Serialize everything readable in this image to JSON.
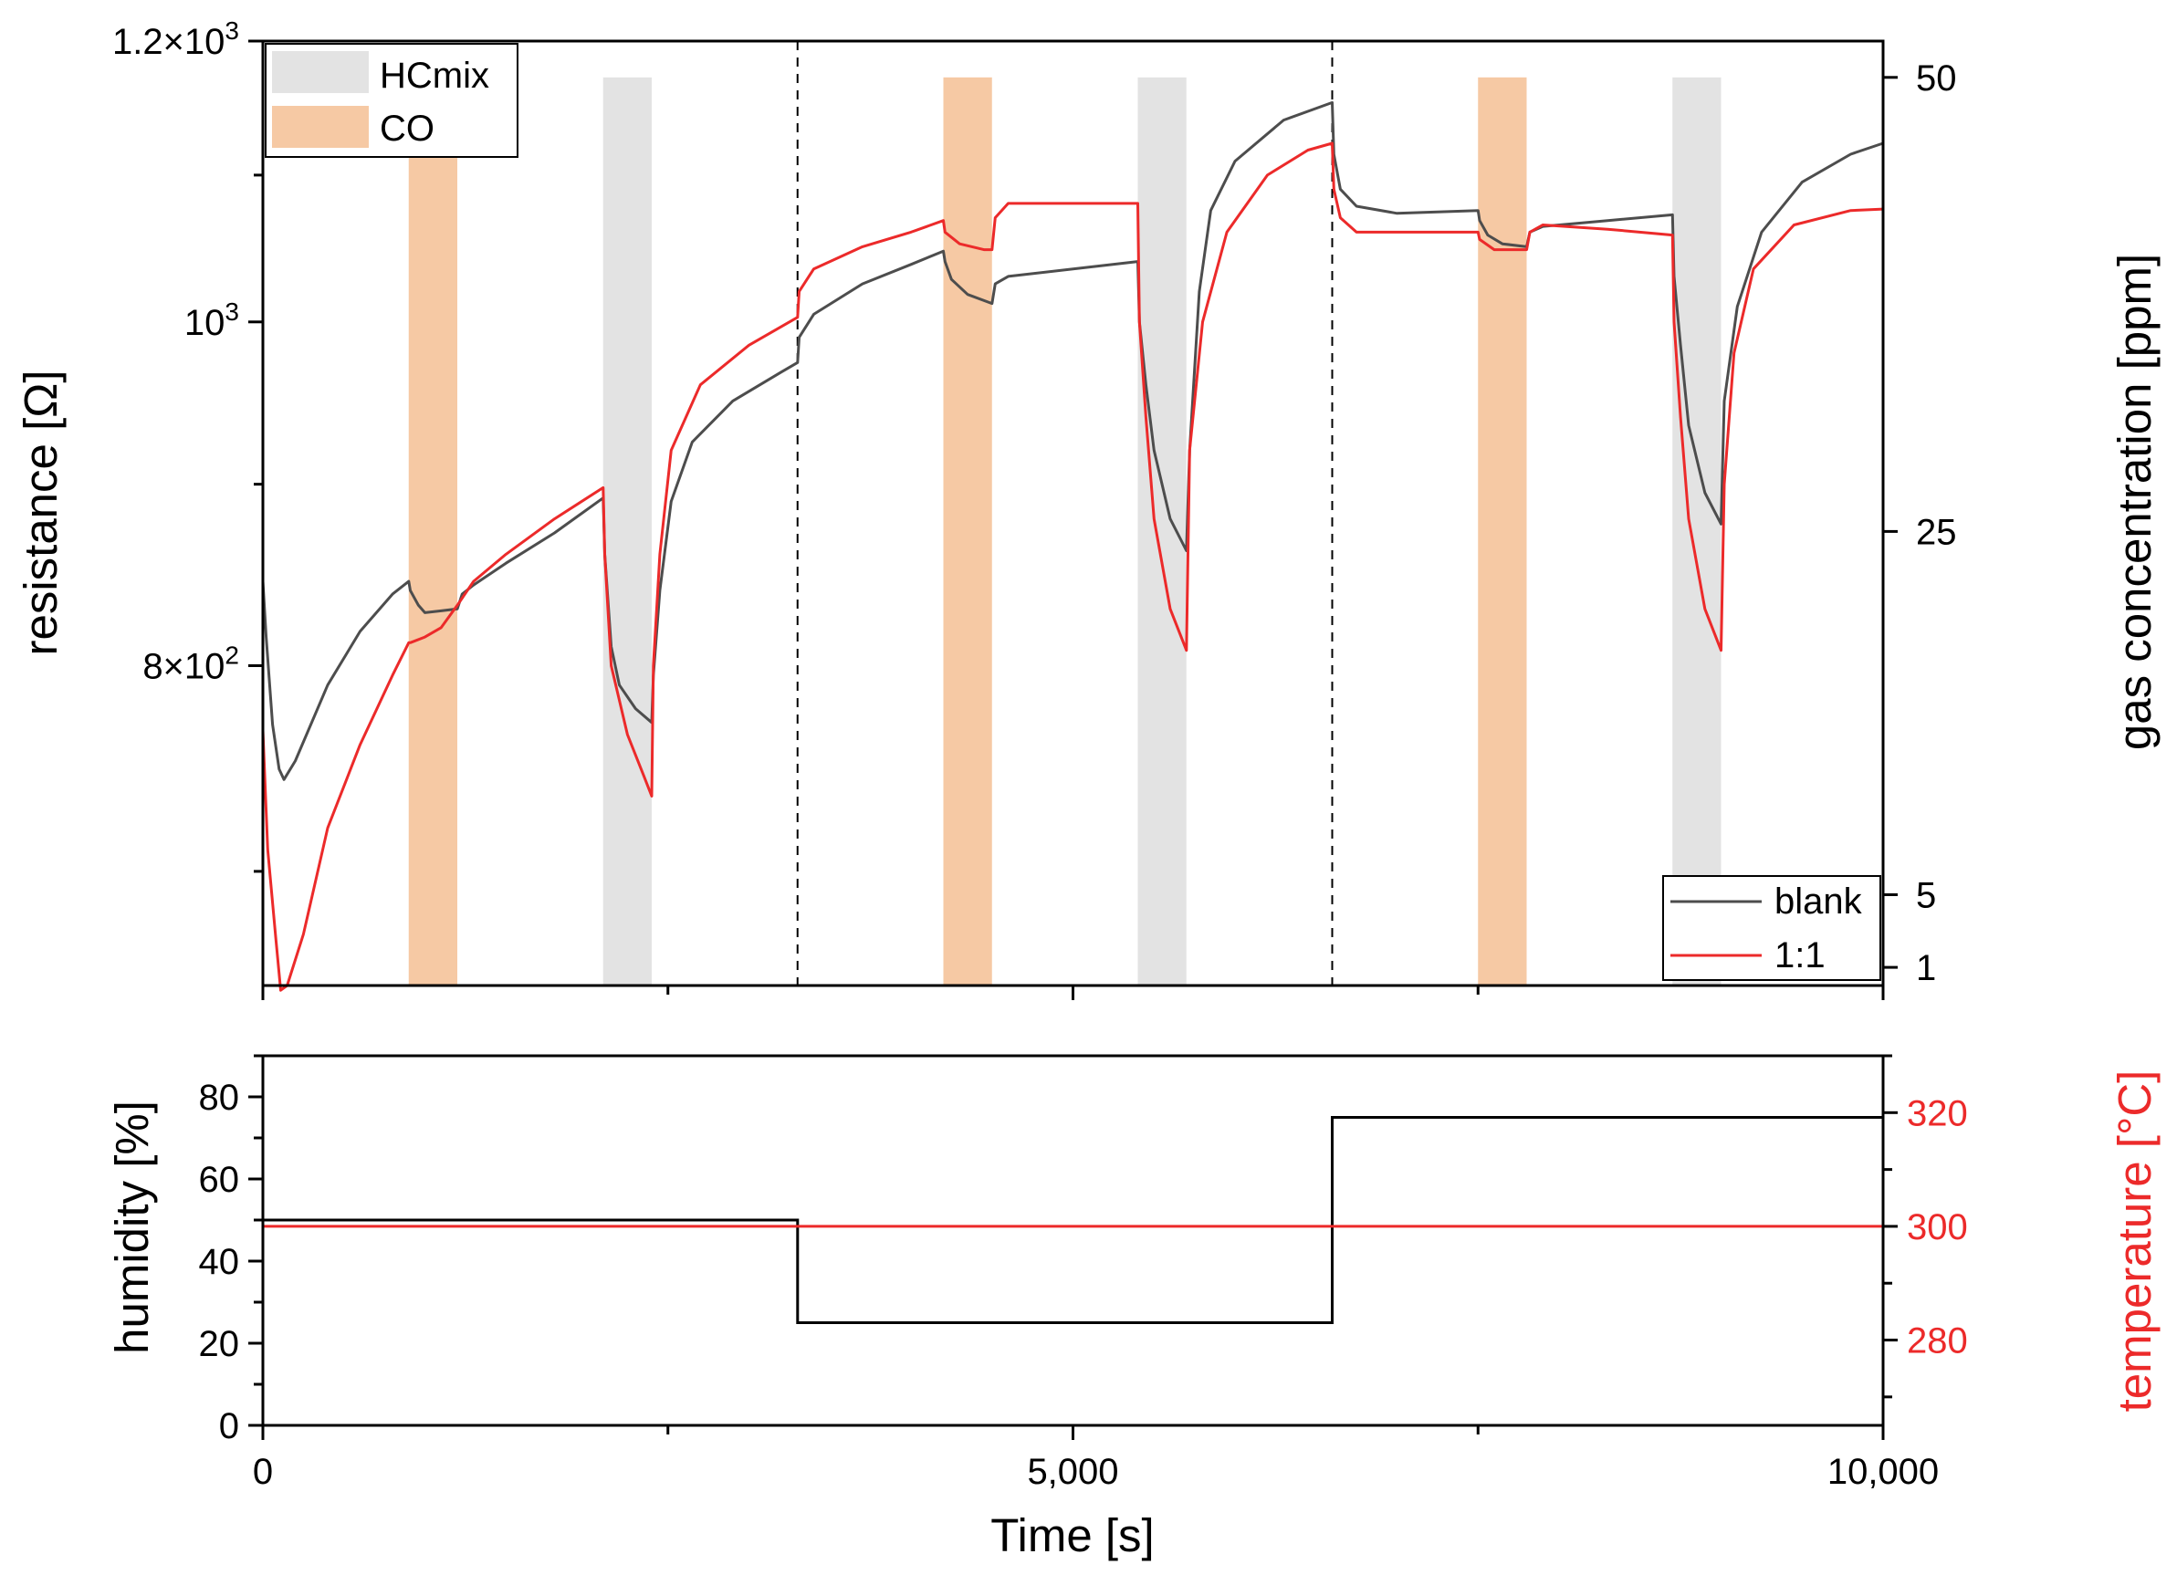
{
  "chart_data": [
    {
      "type": "line",
      "xlabel": "Time [s]",
      "ylabel": "resistance [Ω]",
      "y2label": "gas concentration [ppm]",
      "xlim": [
        0,
        10000
      ],
      "ylim": [
        650,
        1200
      ],
      "y2lim": [
        0,
        52
      ],
      "x_ticks": [
        0,
        5000,
        10000
      ],
      "x_tick_labels": [
        "0",
        "5,000",
        "10,000"
      ],
      "y_ticks": [
        {
          "value": 800,
          "label_base": "8×10",
          "label_exp": "2"
        },
        {
          "value": 1000,
          "label_base": "10",
          "label_exp": "3"
        },
        {
          "value": 1200,
          "label_base": "1.2×10",
          "label_exp": "3"
        }
      ],
      "y2_ticks": [
        1,
        5,
        25,
        50
      ],
      "y2_tick_labels": [
        "1",
        "5",
        "25",
        "50"
      ],
      "phase_boundaries_s": [
        3300,
        6600
      ],
      "gas_pulses": [
        {
          "gas": "CO",
          "start_s": 900,
          "end_s": 1200,
          "concentration_ppm": 50
        },
        {
          "gas": "HCmix",
          "start_s": 2100,
          "end_s": 2400,
          "concentration_ppm": 50
        },
        {
          "gas": "CO",
          "start_s": 4200,
          "end_s": 4500,
          "concentration_ppm": 50
        },
        {
          "gas": "HCmix",
          "start_s": 5400,
          "end_s": 5700,
          "concentration_ppm": 50
        },
        {
          "gas": "CO",
          "start_s": 7500,
          "end_s": 7800,
          "concentration_ppm": 50
        },
        {
          "gas": "HCmix",
          "start_s": 8700,
          "end_s": 9000,
          "concentration_ppm": 50
        }
      ],
      "legend_gas": [
        {
          "label": "HCmix",
          "color": "#e3e3e3"
        },
        {
          "label": "CO",
          "color": "#f6c9a4"
        }
      ],
      "legend_gas_position": "top-left",
      "legend_lines_position": "bottom-right",
      "series": [
        {
          "name": "blank",
          "color": "#4d4d4d",
          "points": [
            [
              0,
              845
            ],
            [
              20,
              815
            ],
            [
              60,
              770
            ],
            [
              100,
              748
            ],
            [
              130,
              743
            ],
            [
              200,
              752
            ],
            [
              400,
              790
            ],
            [
              600,
              818
            ],
            [
              800,
              838
            ],
            [
              900,
              845
            ],
            [
              910,
              840
            ],
            [
              960,
              832
            ],
            [
              1000,
              828
            ],
            [
              1100,
              829
            ],
            [
              1200,
              830
            ],
            [
              1230,
              838
            ],
            [
              1300,
              843
            ],
            [
              1500,
              855
            ],
            [
              1800,
              872
            ],
            [
              2100,
              892
            ],
            [
              2110,
              860
            ],
            [
              2150,
              810
            ],
            [
              2200,
              790
            ],
            [
              2300,
              778
            ],
            [
              2400,
              771
            ],
            [
              2410,
              795
            ],
            [
              2450,
              840
            ],
            [
              2520,
              890
            ],
            [
              2650,
              925
            ],
            [
              2900,
              950
            ],
            [
              3200,
              968
            ],
            [
              3300,
              974
            ],
            [
              3310,
              990
            ],
            [
              3400,
              1005
            ],
            [
              3700,
              1025
            ],
            [
              4000,
              1038
            ],
            [
              4200,
              1047
            ],
            [
              4210,
              1040
            ],
            [
              4250,
              1028
            ],
            [
              4350,
              1018
            ],
            [
              4500,
              1012
            ],
            [
              4520,
              1025
            ],
            [
              4600,
              1030
            ],
            [
              5000,
              1035
            ],
            [
              5400,
              1040
            ],
            [
              5410,
              1000
            ],
            [
              5450,
              960
            ],
            [
              5500,
              920
            ],
            [
              5600,
              880
            ],
            [
              5700,
              862
            ],
            [
              5720,
              920
            ],
            [
              5780,
              1020
            ],
            [
              5850,
              1075
            ],
            [
              6000,
              1110
            ],
            [
              6300,
              1140
            ],
            [
              6600,
              1153
            ],
            [
              6610,
              1115
            ],
            [
              6650,
              1090
            ],
            [
              6750,
              1078
            ],
            [
              7000,
              1073
            ],
            [
              7500,
              1075
            ],
            [
              7510,
              1068
            ],
            [
              7560,
              1058
            ],
            [
              7650,
              1052
            ],
            [
              7800,
              1050
            ],
            [
              7820,
              1060
            ],
            [
              7900,
              1064
            ],
            [
              8300,
              1068
            ],
            [
              8700,
              1072
            ],
            [
              8710,
              1030
            ],
            [
              8750,
              985
            ],
            [
              8800,
              935
            ],
            [
              8900,
              895
            ],
            [
              9000,
              877
            ],
            [
              9020,
              950
            ],
            [
              9100,
              1010
            ],
            [
              9250,
              1060
            ],
            [
              9500,
              1095
            ],
            [
              9800,
              1115
            ],
            [
              10000,
              1123
            ]
          ]
        },
        {
          "name": "1:1",
          "color": "#ec2a2a",
          "points": [
            [
              0,
              767
            ],
            [
              30,
              710
            ],
            [
              80,
              670
            ],
            [
              110,
              648
            ],
            [
              150,
              650
            ],
            [
              250,
              672
            ],
            [
              400,
              720
            ],
            [
              600,
              760
            ],
            [
              800,
              795
            ],
            [
              900,
              812
            ],
            [
              910,
              812
            ],
            [
              1000,
              815
            ],
            [
              1100,
              820
            ],
            [
              1200,
              832
            ],
            [
              1300,
              845
            ],
            [
              1500,
              860
            ],
            [
              1800,
              880
            ],
            [
              2100,
              898
            ],
            [
              2110,
              860
            ],
            [
              2150,
              800
            ],
            [
              2250,
              765
            ],
            [
              2350,
              745
            ],
            [
              2400,
              735
            ],
            [
              2410,
              800
            ],
            [
              2450,
              860
            ],
            [
              2520,
              920
            ],
            [
              2700,
              960
            ],
            [
              3000,
              985
            ],
            [
              3300,
              1003
            ],
            [
              3310,
              1020
            ],
            [
              3400,
              1035
            ],
            [
              3700,
              1050
            ],
            [
              4000,
              1060
            ],
            [
              4200,
              1068
            ],
            [
              4210,
              1060
            ],
            [
              4300,
              1052
            ],
            [
              4450,
              1048
            ],
            [
              4500,
              1048
            ],
            [
              4520,
              1070
            ],
            [
              4600,
              1080
            ],
            [
              5400,
              1080
            ],
            [
              5410,
              1000
            ],
            [
              5450,
              940
            ],
            [
              5500,
              880
            ],
            [
              5600,
              830
            ],
            [
              5700,
              808
            ],
            [
              5720,
              920
            ],
            [
              5800,
              1000
            ],
            [
              5950,
              1060
            ],
            [
              6200,
              1100
            ],
            [
              6450,
              1118
            ],
            [
              6600,
              1123
            ],
            [
              6610,
              1090
            ],
            [
              6650,
              1070
            ],
            [
              6750,
              1060
            ],
            [
              7500,
              1060
            ],
            [
              7510,
              1055
            ],
            [
              7600,
              1048
            ],
            [
              7800,
              1048
            ],
            [
              7820,
              1060
            ],
            [
              7900,
              1065
            ],
            [
              8300,
              1062
            ],
            [
              8700,
              1058
            ],
            [
              8710,
              1000
            ],
            [
              8750,
              940
            ],
            [
              8800,
              880
            ],
            [
              8900,
              830
            ],
            [
              9000,
              808
            ],
            [
              9020,
              900
            ],
            [
              9080,
              980
            ],
            [
              9200,
              1035
            ],
            [
              9450,
              1065
            ],
            [
              9800,
              1075
            ],
            [
              10000,
              1076
            ]
          ]
        }
      ]
    },
    {
      "type": "line",
      "xlabel": "Time [s]",
      "ylabel": "humidity [%]",
      "y2label": "temperature [°C]",
      "xlim": [
        0,
        10000
      ],
      "ylim": [
        0,
        90
      ],
      "y2lim": [
        265,
        330
      ],
      "x_ticks": [
        0,
        5000,
        10000
      ],
      "x_tick_labels": [
        "0",
        "5,000",
        "10,000"
      ],
      "y_ticks": [
        0,
        20,
        40,
        60,
        80
      ],
      "y_tick_labels": [
        "0",
        "20",
        "40",
        "60",
        "80"
      ],
      "y2_ticks": [
        280,
        300,
        320
      ],
      "y2_tick_labels": [
        "280",
        "300",
        "320"
      ],
      "series": [
        {
          "name": "humidity",
          "color": "#000000",
          "axis": "left",
          "points": [
            [
              0,
              50
            ],
            [
              3300,
              50
            ],
            [
              3300,
              25
            ],
            [
              6600,
              25
            ],
            [
              6600,
              75
            ],
            [
              10000,
              75
            ]
          ]
        },
        {
          "name": "temperature",
          "color": "#ec2a2a",
          "axis": "right",
          "points": [
            [
              0,
              300
            ],
            [
              10000,
              300
            ]
          ]
        }
      ]
    }
  ],
  "colors": {
    "blank": "#4d4d4d",
    "ratio": "#ec2a2a",
    "co_band": "#f6c9a4",
    "hcmix_band": "#e3e3e3",
    "temperature_axis": "#ec2a2a"
  }
}
